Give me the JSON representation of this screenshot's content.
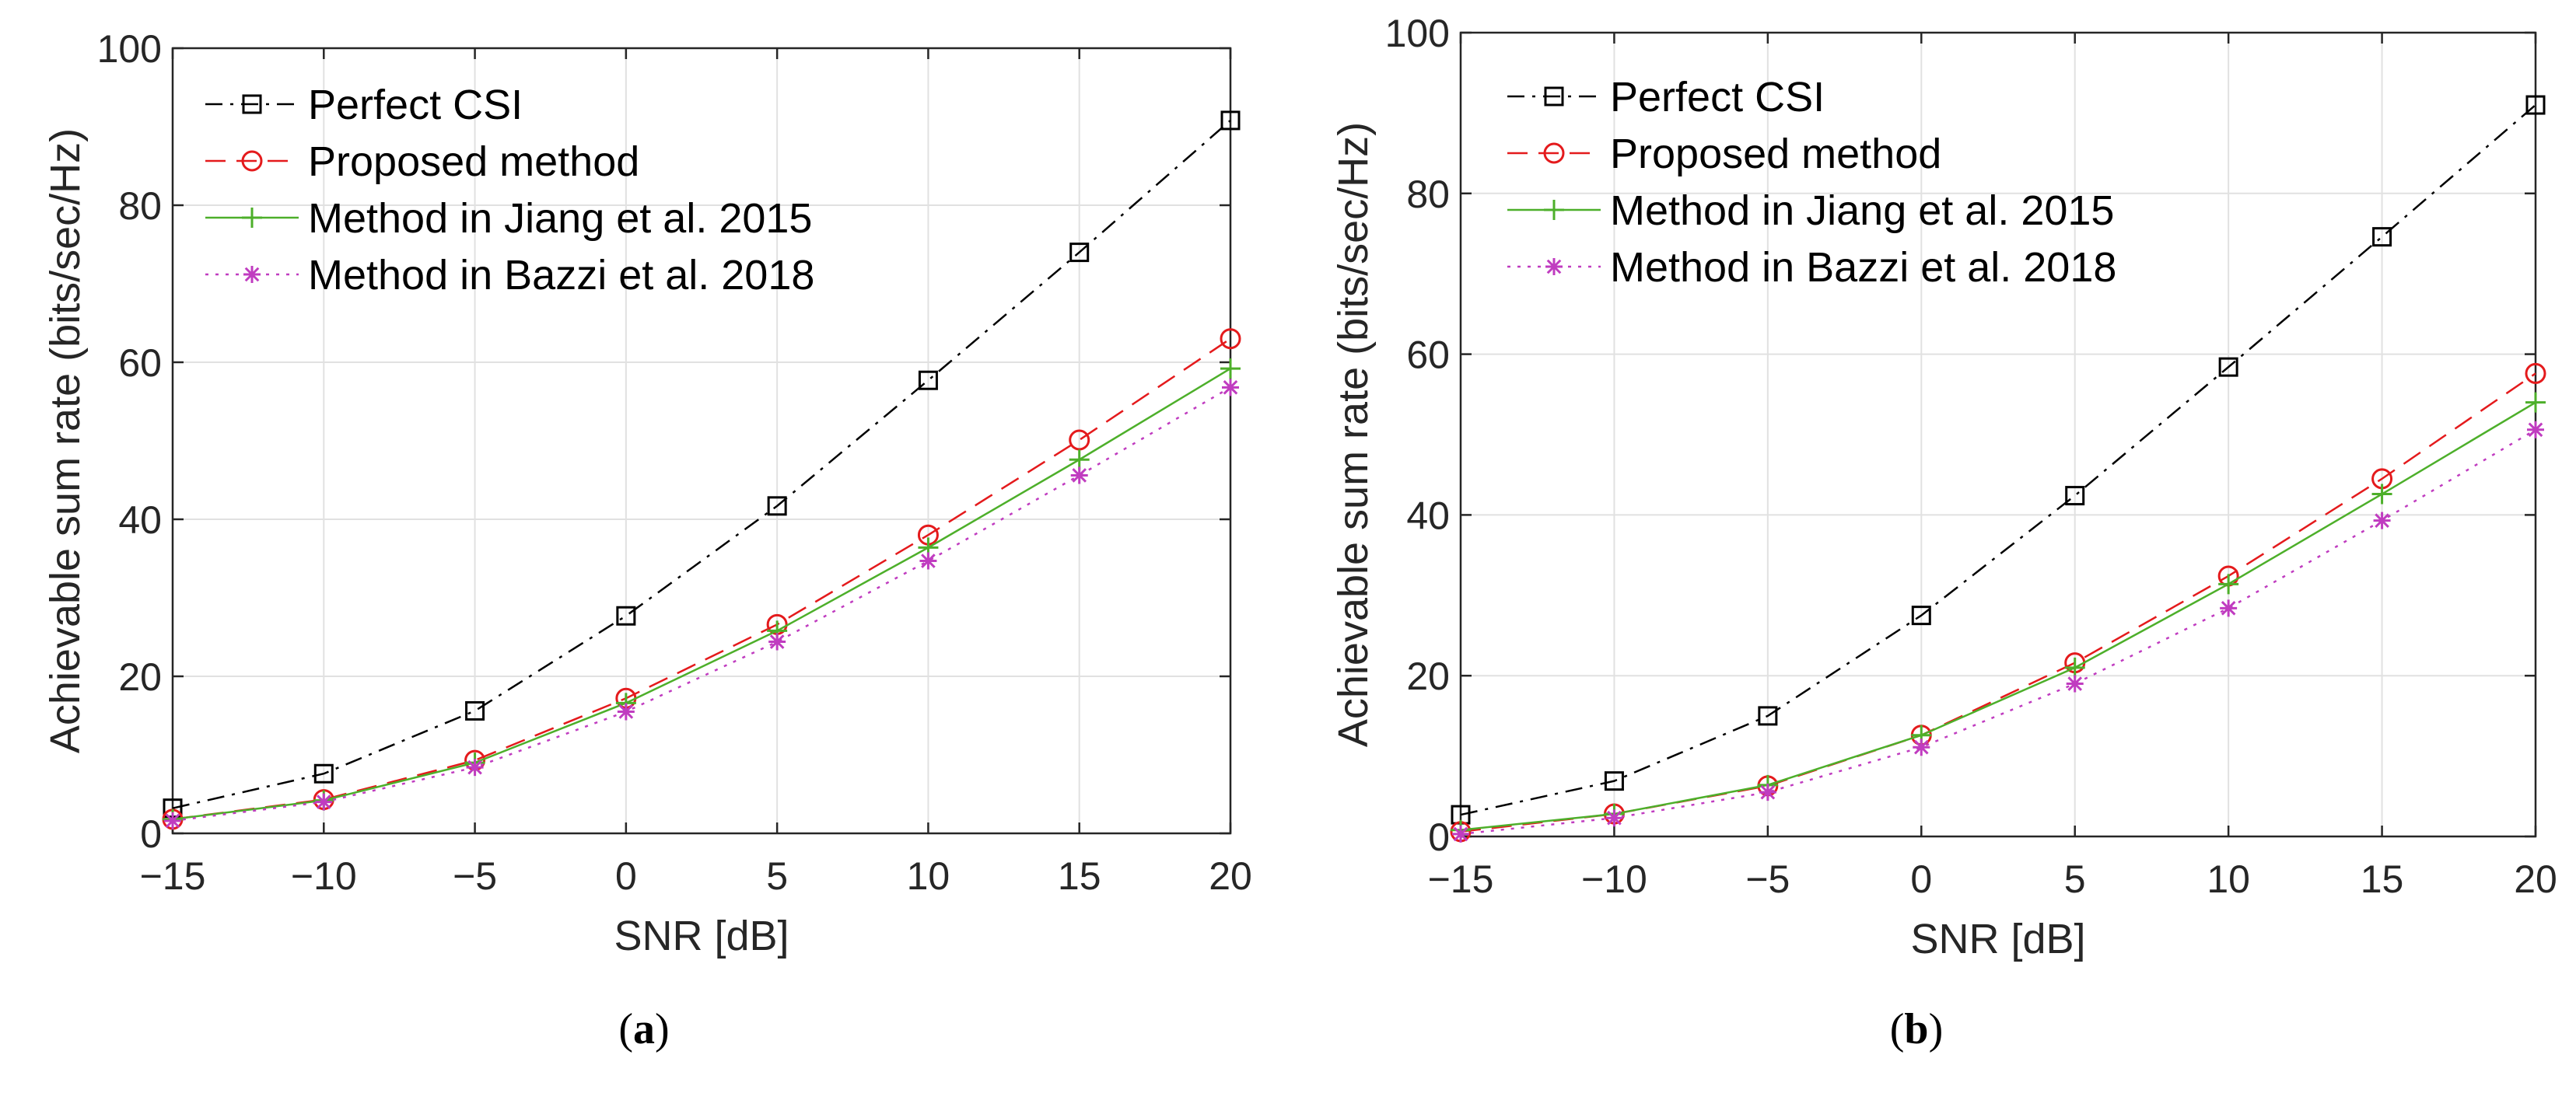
{
  "chart_data": [
    {
      "panel_label": "a",
      "type": "line",
      "title": "",
      "xlabel": "SNR [dB]",
      "ylabel": "Achievable sum rate (bits/sec/Hz)",
      "xlim": [
        -15,
        20
      ],
      "ylim": [
        0,
        100
      ],
      "x": [
        -15,
        -10,
        -5,
        0,
        5,
        10,
        15,
        20
      ],
      "xticks": [
        -15,
        -10,
        -5,
        0,
        5,
        10,
        15,
        20
      ],
      "yticks": [
        0,
        20,
        40,
        60,
        80,
        100
      ],
      "grid": true,
      "legend_position": "top-left",
      "series": [
        {
          "name": "Perfect CSI",
          "color": "#000000",
          "marker": "square",
          "dash": "dashdot",
          "values": [
            3.2,
            7.6,
            15.6,
            27.7,
            41.7,
            57.7,
            74.0,
            90.8
          ]
        },
        {
          "name": "Proposed method",
          "color": "#e41a1c",
          "marker": "circle",
          "dash": "dashed",
          "values": [
            1.8,
            4.3,
            9.3,
            17.2,
            26.6,
            38.0,
            50.1,
            63.0
          ]
        },
        {
          "name": "Method in Jiang et al. 2015",
          "color": "#4daf2a",
          "marker": "plus",
          "dash": "solid",
          "values": [
            1.8,
            4.2,
            9.0,
            16.6,
            25.8,
            36.4,
            47.6,
            59.2
          ]
        },
        {
          "name": "Method in Bazzi et al. 2018",
          "color": "#c03cc0",
          "marker": "asterisk",
          "dash": "dotted",
          "values": [
            1.6,
            4.0,
            8.4,
            15.5,
            24.4,
            34.7,
            45.6,
            56.8
          ]
        }
      ]
    },
    {
      "panel_label": "b",
      "type": "line",
      "title": "",
      "xlabel": "SNR [dB]",
      "ylabel": "Achievable sum rate (bits/sec/Hz)",
      "xlim": [
        -15,
        20
      ],
      "ylim": [
        0,
        100
      ],
      "x": [
        -15,
        -10,
        -5,
        0,
        5,
        10,
        15,
        20
      ],
      "xticks": [
        -15,
        -10,
        -5,
        0,
        5,
        10,
        15,
        20
      ],
      "yticks": [
        0,
        20,
        40,
        60,
        80,
        100
      ],
      "grid": true,
      "legend_position": "top-left",
      "series": [
        {
          "name": "Perfect CSI",
          "color": "#000000",
          "marker": "square",
          "dash": "dashdot",
          "values": [
            2.7,
            6.9,
            15.0,
            27.5,
            42.4,
            58.4,
            74.6,
            91.0
          ]
        },
        {
          "name": "Proposed method",
          "color": "#e41a1c",
          "marker": "circle",
          "dash": "dashed",
          "values": [
            0.6,
            2.8,
            6.3,
            12.6,
            21.6,
            32.4,
            44.5,
            57.6
          ]
        },
        {
          "name": "Method in Jiang et al. 2015",
          "color": "#4daf2a",
          "marker": "plus",
          "dash": "solid",
          "values": [
            0.8,
            2.8,
            6.4,
            12.6,
            21.0,
            31.4,
            42.6,
            54.0
          ]
        },
        {
          "name": "Method in Bazzi et al. 2018",
          "color": "#c03cc0",
          "marker": "asterisk",
          "dash": "dotted",
          "values": [
            0.3,
            2.3,
            5.5,
            11.1,
            19.0,
            28.4,
            39.3,
            50.6
          ]
        }
      ]
    }
  ],
  "captions": [
    "a",
    "b"
  ]
}
